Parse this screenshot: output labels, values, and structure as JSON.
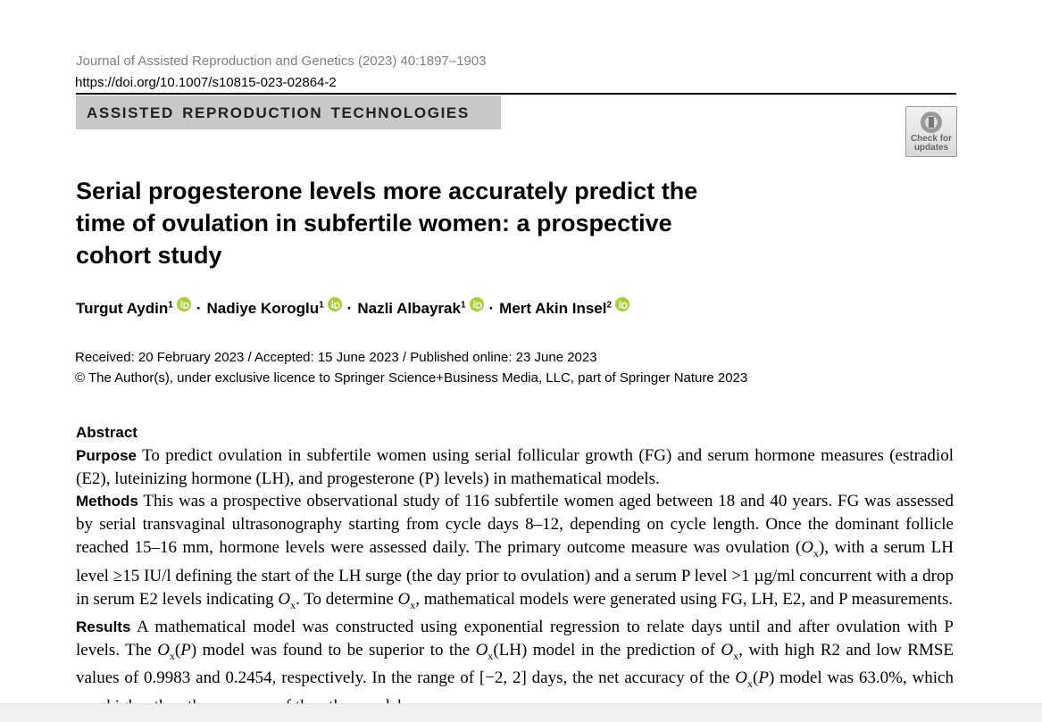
{
  "header": {
    "journal": "Journal of Assisted Reproduction and Genetics (2023) 40:1897–1903",
    "doi": "https://doi.org/10.1007/s10815-023-02864-2",
    "section": "ASSISTED REPRODUCTION TECHNOLOGIES",
    "badge": [
      "Check for",
      "updates"
    ]
  },
  "article": {
    "title": "Serial progesterone levels more accurately predict the time of ovulation in subfertile women: a prospective cohort study",
    "separator": "·",
    "authors": [
      {
        "name": "Turgut Aydin",
        "sup": "1"
      },
      {
        "name": "Nadiye Koroglu",
        "sup": "1"
      },
      {
        "name": "Nazli Albayrak",
        "sup": "1"
      },
      {
        "name": "Mert Akin Insel",
        "sup": "2"
      }
    ],
    "dates": "Received: 20 February 2023 / Accepted: 15 June 2023 / Published online: 23 June 2023",
    "copyright": "© The Author(s), under exclusive licence to Springer Science+Business Media, LLC, part of Springer Nature 2023",
    "abstract": {
      "heading": "Abstract",
      "paragraphs": [
        {
          "label": "Purpose",
          "runs": [
            "To predict ovulation in subfertile women using serial follicular growth (FG) and serum hormone measures (estradiol (E2), luteinizing hormone (LH), and progesterone (P) levels) in mathematical models."
          ]
        },
        {
          "label": "Methods",
          "runs": [
            "This was a prospective observational study of 116 subfertile women aged between 18 and 40 years. FG was assessed by serial transvaginal ultrasonography starting from cycle days 8–12, depending on cycle length. Once the dominant follicle reached 15–16 mm, hormone levels were assessed daily. The primary outcome measure was ovulation (",
            {
              "i": "O",
              "sub": "x"
            },
            "), with a serum LH level ≥15 IU/l defining the start of the LH surge (the day prior to ovulation) and a serum P level >1 µg/ml concurrent with a drop in serum E2 levels indicating ",
            {
              "i": "O",
              "sub": "x"
            },
            ". To determine ",
            {
              "i": "O",
              "sub": "x"
            },
            ", mathematical models were generated using FG, LH, E2, and P measurements."
          ]
        },
        {
          "label": "Results",
          "runs": [
            "A mathematical model was constructed using exponential regression to relate days until and after ovulation with P levels. The ",
            {
              "i": "O",
              "sub": "x"
            },
            "(",
            {
              "i": "P"
            },
            ") model was found to be superior to the ",
            {
              "i": "O",
              "sub": "x"
            },
            "(LH) model in the prediction of ",
            {
              "i": "O",
              "sub": "x"
            },
            ", with high R2 and low RMSE values of 0.9983 and 0.2454, respectively. In the range of [−2, 2] days, the net accuracy of the ",
            {
              "i": "O",
              "sub": "x"
            },
            "(",
            {
              "i": "P"
            },
            ") model was 63.0%, which was higher than the accuracy of the other models."
          ]
        }
      ]
    }
  }
}
